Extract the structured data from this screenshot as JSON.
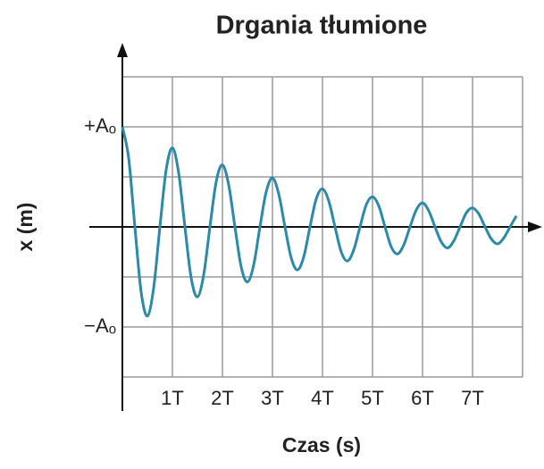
{
  "chart_data": {
    "type": "line",
    "title": "Drgania tłumione",
    "x_label": "Czas (s)",
    "y_label": "x (m)",
    "x": [
      0,
      0.125,
      0.25,
      0.375,
      0.5,
      0.625,
      0.75,
      0.875,
      1,
      1.125,
      1.25,
      1.375,
      1.5,
      1.625,
      1.75,
      1.875,
      2,
      2.125,
      2.25,
      2.375,
      2.5,
      2.625,
      2.75,
      2.875,
      3,
      3.125,
      3.25,
      3.375,
      3.5,
      3.625,
      3.75,
      3.875,
      4,
      4.125,
      4.25,
      4.375,
      4.5,
      4.625,
      4.75,
      4.875,
      5,
      5.125,
      5.25,
      5.375,
      5.5,
      5.625,
      5.75,
      5.875,
      6,
      6.125,
      6.25,
      6.375,
      6.5,
      6.625,
      6.75,
      6.875,
      7,
      7.125,
      7.25,
      7.375,
      7.5,
      7.625,
      7.75,
      7.875
    ],
    "series": [
      {
        "color": "#2a8aa8",
        "values": [
          1,
          0.69,
          0,
          -0.65,
          -0.89,
          -0.61,
          0,
          0.57,
          0.79,
          0.54,
          0,
          -0.51,
          -0.7,
          -0.48,
          0,
          0.45,
          0.62,
          0.42,
          0,
          -0.4,
          -0.55,
          -0.38,
          0,
          0.35,
          0.49,
          0.33,
          0,
          -0.31,
          -0.43,
          -0.3,
          0,
          0.28,
          0.38,
          0.26,
          0,
          -0.25,
          -0.34,
          -0.23,
          0,
          0.22,
          0.3,
          0.21,
          0,
          -0.2,
          -0.27,
          -0.18,
          0,
          0.17,
          0.24,
          0.16,
          0,
          -0.15,
          -0.21,
          -0.14,
          0,
          0.14,
          0.19,
          0.13,
          0,
          -0.12,
          -0.17,
          -0.11,
          0,
          0.11
        ]
      }
    ],
    "xlim": [
      0,
      8
    ],
    "ylim": [
      -1.5,
      1.5
    ],
    "xticks": [
      {
        "value": 0,
        "label": null
      },
      {
        "value": 1,
        "label": "1T"
      },
      {
        "value": 2,
        "label": "2T"
      },
      {
        "value": 3,
        "label": "3T"
      },
      {
        "value": 4,
        "label": "4T"
      },
      {
        "value": 5,
        "label": "5T"
      },
      {
        "value": 6,
        "label": "6T"
      },
      {
        "value": 7,
        "label": "7T"
      },
      {
        "value": 8,
        "label": null
      }
    ],
    "yticks": [
      {
        "value": -1.5,
        "label": null
      },
      {
        "value": -1,
        "label": "−Aₒ"
      },
      {
        "value": -0.5,
        "label": null
      },
      {
        "value": 0.5,
        "label": null
      },
      {
        "value": 1,
        "label": "+Aₒ"
      },
      {
        "value": 1.5,
        "label": null
      }
    ],
    "grid": true
  }
}
